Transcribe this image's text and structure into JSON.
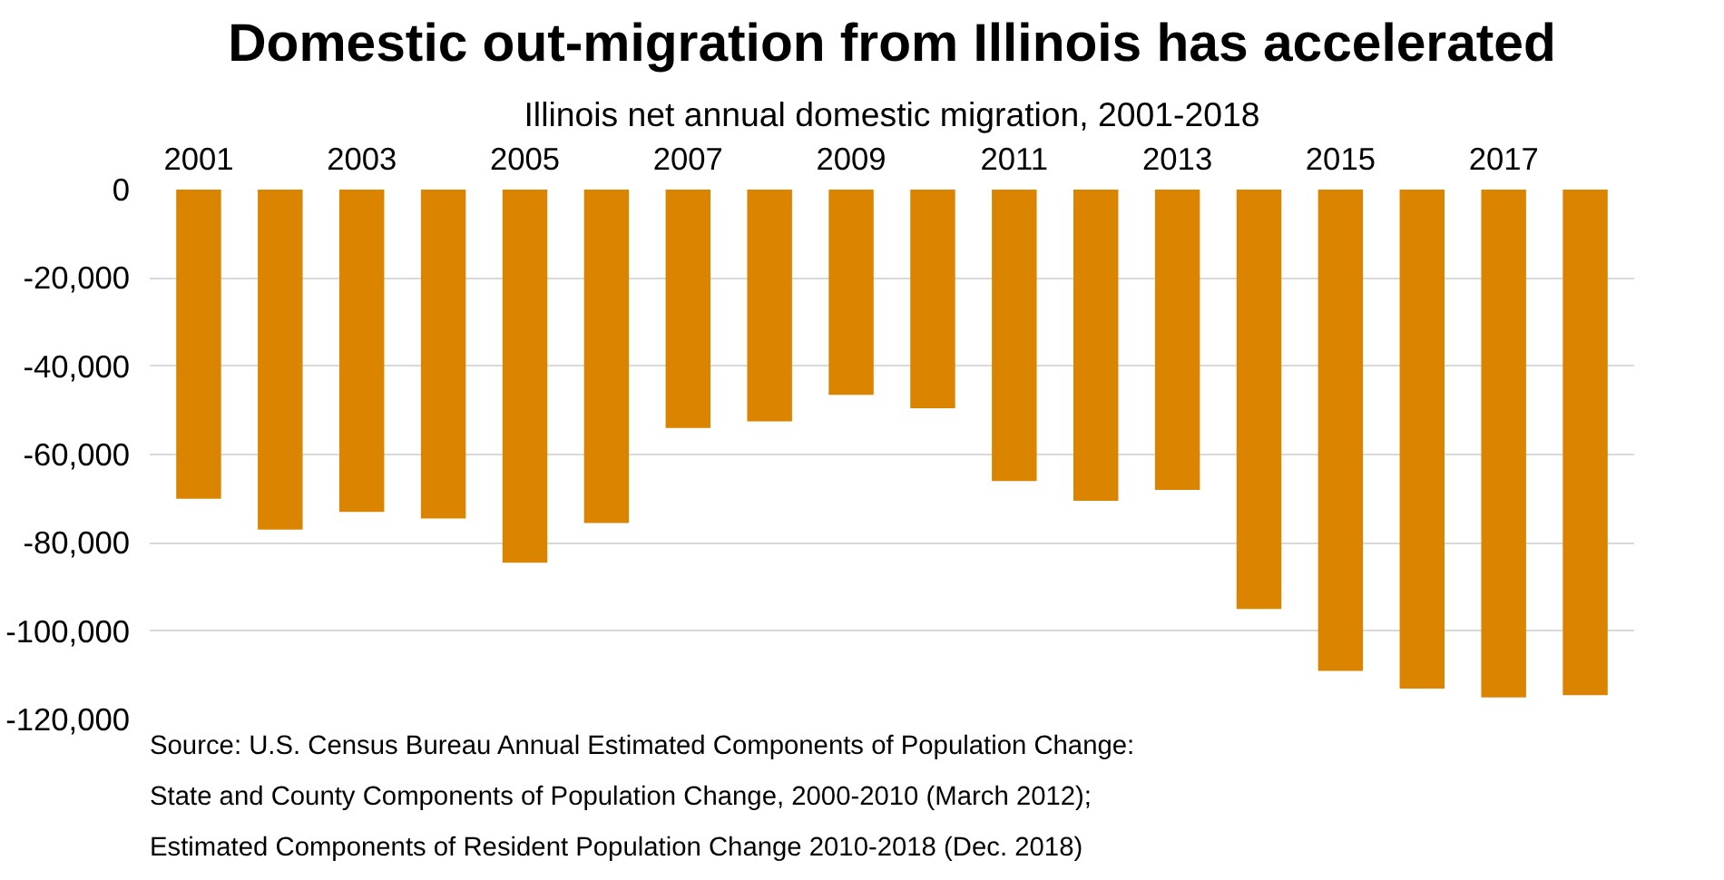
{
  "chart_data": {
    "type": "bar",
    "title": "Domestic out-migration from Illinois has accelerated",
    "subtitle": "Illinois net annual domestic migration, 2001-2018",
    "categories": [
      "2001",
      null,
      "2003",
      null,
      "2005",
      null,
      "2007",
      null,
      "2009",
      null,
      "2011",
      null,
      "2013",
      null,
      "2015",
      null,
      "2017",
      null
    ],
    "values": [
      -70000,
      -77000,
      -73000,
      -74500,
      -84500,
      -75500,
      -54000,
      -52500,
      -46500,
      -49500,
      -66000,
      -70500,
      -68000,
      -95000,
      -109000,
      -113000,
      -115000,
      -114500
    ],
    "color": "#db8400",
    "ylim": [
      -120000,
      0
    ],
    "yticks": [
      0,
      {
        "value": -20000,
        "label": "-20,000"
      },
      {
        "value": -40000,
        "label": "-40,000"
      },
      {
        "value": -60000,
        "label": "-60,000"
      },
      {
        "value": -80000,
        "label": "-80,000"
      },
      {
        "value": -100000,
        "label": "-100,000"
      },
      {
        "value": -120000,
        "label": "-120,000"
      }
    ],
    "grid": "y",
    "annotations": [
      "Source: U.S. Census Bureau Annual Estimated Components of Population Change:",
      "State and County Components of Population Change, 2000-2010 (March 2012);",
      "Estimated Components of Resident Population Change 2010-2018 (Dec. 2018)"
    ]
  }
}
